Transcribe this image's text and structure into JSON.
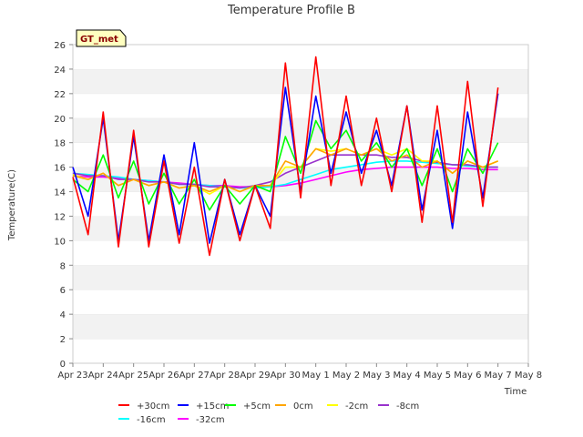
{
  "chart_data": {
    "type": "line",
    "title": "Temperature Profile B",
    "xlabel": "Time",
    "ylabel": "Temperature(C)",
    "site_label": "GT_met",
    "ylim": [
      0,
      26
    ],
    "yticks": [
      0,
      2,
      4,
      6,
      8,
      10,
      12,
      14,
      16,
      18,
      20,
      22,
      24,
      26
    ],
    "xlim": [
      "Apr 23",
      "May 8"
    ],
    "xticks": [
      "Apr 23",
      "Apr 24",
      "Apr 25",
      "Apr 26",
      "Apr 27",
      "Apr 28",
      "Apr 29",
      "Apr 30",
      "May 1",
      "May 2",
      "May 3",
      "May 4",
      "May 5",
      "May 6",
      "May 7",
      "May 8"
    ],
    "grid": "horizontal bands",
    "legend_position": "bottom",
    "x_sample_dates": [
      "Apr 23",
      "Apr 23.5",
      "Apr 24",
      "Apr 24.5",
      "Apr 25",
      "Apr 25.5",
      "Apr 26",
      "Apr 26.5",
      "Apr 27",
      "Apr 27.5",
      "Apr 28",
      "Apr 28.5",
      "Apr 29",
      "Apr 29.5",
      "Apr 30",
      "Apr 30.5",
      "May 1",
      "May 1.5",
      "May 2",
      "May 2.5",
      "May 3",
      "May 3.5",
      "May 4",
      "May 4.5",
      "May 5",
      "May 5.5",
      "May 6",
      "May 6.5",
      "May 7"
    ],
    "series": [
      {
        "name": "+30cm",
        "color": "#ff0000",
        "values": [
          15.2,
          10.5,
          20.5,
          9.5,
          19.0,
          9.5,
          16.5,
          9.8,
          16.0,
          8.8,
          15.0,
          10.0,
          14.5,
          11.0,
          24.5,
          13.5,
          25.0,
          14.5,
          21.8,
          14.5,
          20.0,
          14.0,
          21.0,
          11.5,
          21.0,
          11.5,
          23.0,
          12.8,
          22.5
        ]
      },
      {
        "name": "+15cm",
        "color": "#0000ff",
        "values": [
          16.0,
          12.0,
          20.0,
          10.0,
          18.5,
          10.0,
          17.0,
          10.5,
          18.0,
          9.8,
          15.0,
          10.5,
          14.5,
          12.0,
          22.5,
          14.0,
          21.8,
          15.5,
          20.5,
          15.5,
          19.0,
          14.5,
          21.0,
          12.5,
          19.0,
          11.0,
          20.5,
          13.5,
          22.0
        ]
      },
      {
        "name": "+5cm",
        "color": "#00ff00",
        "values": [
          15.0,
          14.0,
          17.0,
          13.5,
          16.5,
          13.0,
          15.5,
          13.0,
          15.0,
          12.5,
          14.5,
          13.0,
          14.5,
          14.0,
          18.5,
          15.5,
          19.8,
          17.5,
          19.0,
          16.5,
          18.0,
          16.0,
          17.5,
          14.5,
          17.5,
          14.0,
          17.5,
          15.5,
          18.0
        ]
      },
      {
        "name": "0cm",
        "color": "#ffa500",
        "values": [
          15.3,
          15.0,
          15.5,
          14.5,
          15.0,
          14.5,
          14.8,
          14.3,
          14.5,
          14.0,
          14.5,
          14.0,
          14.5,
          14.5,
          16.5,
          16.0,
          17.5,
          17.0,
          17.5,
          17.0,
          17.5,
          16.5,
          17.0,
          16.0,
          16.5,
          15.5,
          16.5,
          16.0,
          16.5
        ]
      },
      {
        "name": "-2cm",
        "color": "#ffff00",
        "values": [
          15.4,
          15.0,
          15.5,
          14.5,
          15.0,
          14.5,
          14.8,
          14.3,
          14.5,
          13.8,
          14.5,
          14.0,
          14.5,
          14.5,
          16.0,
          16.0,
          17.5,
          17.3,
          17.5,
          17.0,
          17.5,
          17.0,
          17.5,
          16.5,
          16.5,
          15.5,
          16.5,
          16.0,
          16.5
        ]
      },
      {
        "name": "-8cm",
        "color": "#9932cc",
        "values": [
          15.5,
          15.3,
          15.3,
          15.0,
          15.0,
          14.8,
          14.8,
          14.6,
          14.6,
          14.4,
          14.4,
          14.3,
          14.5,
          14.8,
          15.5,
          16.0,
          16.5,
          17.0,
          17.0,
          17.0,
          17.0,
          16.8,
          16.8,
          16.5,
          16.4,
          16.2,
          16.2,
          16.0,
          16.0
        ]
      },
      {
        "name": "-16cm",
        "color": "#00ffff",
        "values": [
          15.5,
          15.4,
          15.3,
          15.2,
          15.0,
          14.9,
          14.8,
          14.6,
          14.6,
          14.5,
          14.4,
          14.3,
          14.3,
          14.4,
          14.6,
          15.0,
          15.4,
          15.8,
          16.0,
          16.2,
          16.4,
          16.5,
          16.5,
          16.4,
          16.3,
          16.2,
          16.1,
          16.0,
          16.0
        ]
      },
      {
        "name": "-32cm",
        "color": "#ff00ff",
        "values": [
          15.3,
          15.2,
          15.2,
          15.1,
          15.0,
          14.9,
          14.8,
          14.7,
          14.6,
          14.5,
          14.5,
          14.4,
          14.4,
          14.4,
          14.5,
          14.7,
          15.0,
          15.3,
          15.6,
          15.8,
          15.9,
          16.0,
          16.0,
          16.0,
          16.0,
          15.9,
          15.9,
          15.8,
          15.8
        ]
      }
    ]
  }
}
